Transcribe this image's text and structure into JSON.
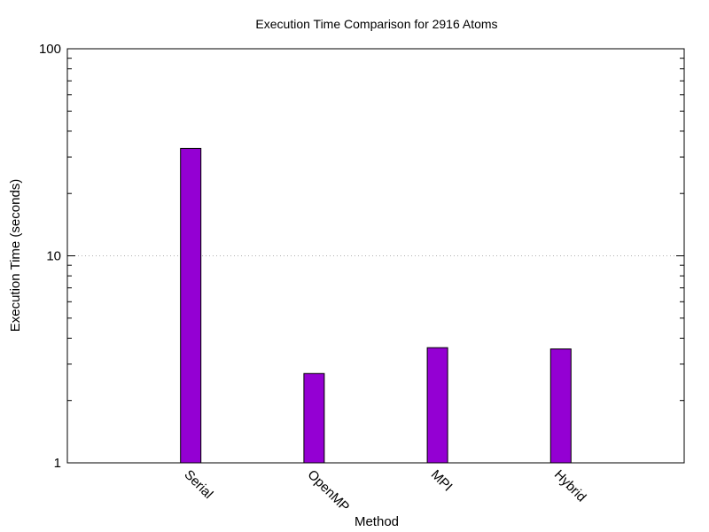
{
  "chart_data": {
    "type": "bar",
    "title": "Execution Time Comparison for 2916 Atoms",
    "xlabel": "Method",
    "ylabel": "Execution Time (seconds)",
    "y_scale": "log",
    "ylim": [
      1,
      100
    ],
    "y_ticks": [
      {
        "value": 1,
        "label": "1"
      },
      {
        "value": 10,
        "label": "10"
      },
      {
        "value": 100,
        "label": "100"
      }
    ],
    "grid": "horizontal dotted at 10",
    "categories": [
      "Serial",
      "OpenMP",
      "MPI",
      "Hybrid"
    ],
    "values": [
      33.0,
      2.7,
      3.6,
      3.55
    ],
    "bar_color": "#9400d3"
  }
}
